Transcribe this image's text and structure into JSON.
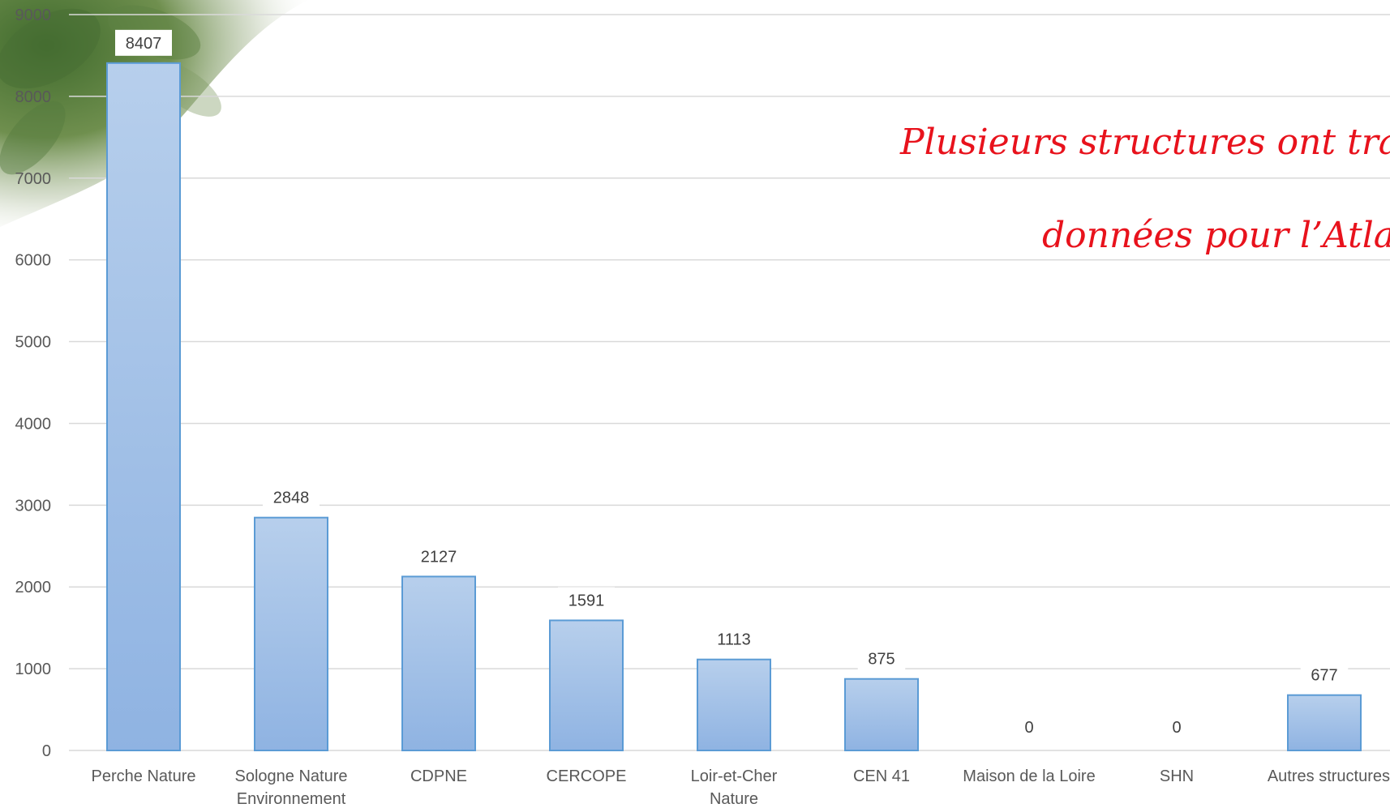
{
  "chart_data": {
    "type": "bar",
    "categories": [
      [
        "Perche Nature"
      ],
      [
        "Sologne Nature",
        "Environnement"
      ],
      [
        "CDPNE"
      ],
      [
        "CERCOPE"
      ],
      [
        "Loir-et-Cher",
        "Nature"
      ],
      [
        "CEN 41"
      ],
      [
        "Maison de la Loire"
      ],
      [
        "SHN"
      ],
      [
        "Autres structures"
      ]
    ],
    "values": [
      8407,
      2848,
      2127,
      1591,
      1113,
      875,
      0,
      0,
      677
    ],
    "data_labels": [
      "8407",
      "2848",
      "2127",
      "1591",
      "1113",
      "875",
      "0",
      "0",
      "677"
    ],
    "yticks": [
      "0",
      "1000",
      "2000",
      "3000",
      "4000",
      "5000",
      "6000",
      "7000",
      "8000",
      "9000"
    ],
    "ylim": [
      0,
      9000
    ],
    "grid": true,
    "legend": "none",
    "title": "",
    "xlabel": "",
    "ylabel": "",
    "annotation": [
      "Plusieurs structures ont transmises",
      "données pour l’Atlas"
    ],
    "colors": {
      "bar_top": "#b7cfec",
      "bar_bottom": "#8fb3e2",
      "bar_stroke": "#5b9bd5",
      "grid": "#d9d9d9",
      "annotation": "#e8121c"
    }
  }
}
